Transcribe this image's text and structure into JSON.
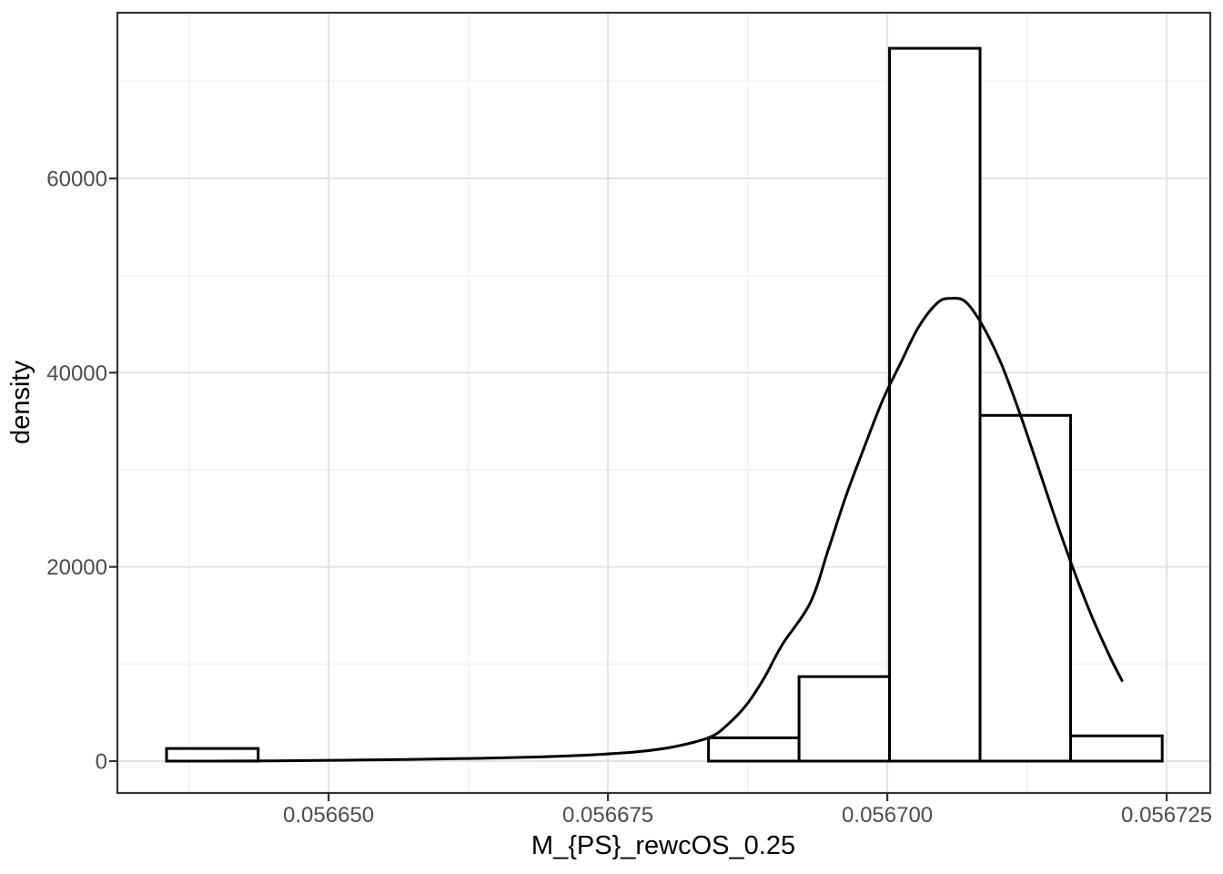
{
  "chart_data": {
    "type": "histogram_with_density_curve",
    "title": "",
    "xlabel": "M_{PS}_rewcOS_0.25",
    "ylabel": "density",
    "legend": false,
    "grid": true,
    "x_axis": {
      "range": [
        0.0566311,
        0.0567289
      ],
      "tick_values": [
        0.05665,
        0.056675,
        0.0567,
        0.056725
      ],
      "tick_labels": [
        "0.056650",
        "0.056675",
        "0.056700",
        "0.056725"
      ],
      "minor_values": [
        0.0566375,
        0.0566625,
        0.0566875,
        0.0567125
      ]
    },
    "y_axis": {
      "range": [
        -3281,
        77063
      ],
      "tick_values": [
        0,
        20000,
        40000,
        60000
      ],
      "tick_labels": [
        "0",
        "20000",
        "40000",
        "60000"
      ],
      "minor_values": [
        10000,
        30000,
        50000,
        70000
      ]
    },
    "bars": [
      {
        "x0": 0.0566355,
        "x1": 0.0566437,
        "density": 1300
      },
      {
        "x0": 0.056684,
        "x1": 0.0566921,
        "density": 2400
      },
      {
        "x0": 0.0566921,
        "x1": 0.0567002,
        "density": 8700
      },
      {
        "x0": 0.0567002,
        "x1": 0.0567083,
        "density": 73400
      },
      {
        "x0": 0.0567083,
        "x1": 0.0567164,
        "density": 35600
      },
      {
        "x0": 0.0567164,
        "x1": 0.0567246,
        "density": 2600
      }
    ],
    "density_curve": [
      [
        0.0566401,
        0
      ],
      [
        0.056645,
        30
      ],
      [
        0.056653,
        110
      ],
      [
        0.056661,
        240
      ],
      [
        0.056669,
        430
      ],
      [
        0.0566745,
        700
      ],
      [
        0.056678,
        1000
      ],
      [
        0.056681,
        1500
      ],
      [
        0.0566841,
        2450
      ],
      [
        0.0566857,
        3750
      ],
      [
        0.0566874,
        5800
      ],
      [
        0.056689,
        8600
      ],
      [
        0.0566906,
        12000
      ],
      [
        0.0566931,
        16300
      ],
      [
        0.0566947,
        21700
      ],
      [
        0.0566963,
        27300
      ],
      [
        0.056698,
        32500
      ],
      [
        0.0566996,
        37200
      ],
      [
        0.0567012,
        41000
      ],
      [
        0.0567028,
        44700
      ],
      [
        0.0567045,
        47200
      ],
      [
        0.0567057,
        47650
      ],
      [
        0.056707,
        47300
      ],
      [
        0.0567085,
        44900
      ],
      [
        0.0567102,
        40900
      ],
      [
        0.0567118,
        36000
      ],
      [
        0.0567134,
        30600
      ],
      [
        0.056715,
        25100
      ],
      [
        0.0567167,
        19600
      ],
      [
        0.0567183,
        14900
      ],
      [
        0.0567199,
        10800
      ],
      [
        0.056721,
        8300
      ]
    ],
    "colors": {
      "background": "#ffffff",
      "panel_background": "#ffffff",
      "grid_major": "#e3e3e3",
      "grid_minor": "#f0f0f0",
      "panel_border": "#333333",
      "tick_mark": "#333333",
      "tick_label": "#4d4d4d",
      "axis_title": "#000000",
      "bar_fill": "#ffffff",
      "bar_stroke": "#000000",
      "curve_stroke": "#000000"
    }
  }
}
